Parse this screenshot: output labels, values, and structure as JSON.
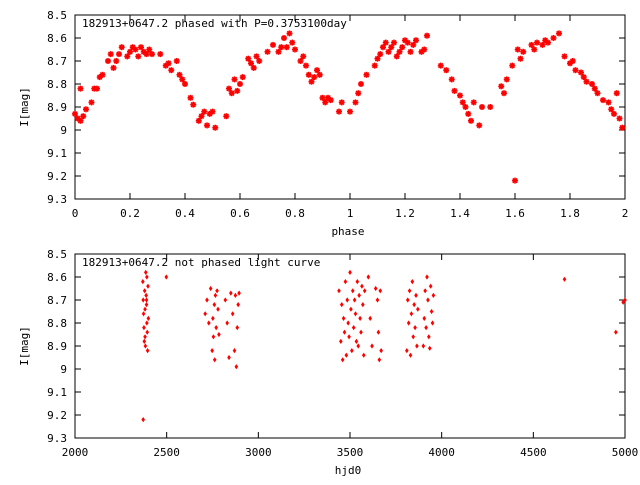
{
  "chart_data": [
    {
      "type": "scatter",
      "title": "182913+0647.2 phased with P=0.3753100day",
      "xlabel": "phase",
      "ylabel": "I[mag]",
      "xlim": [
        0,
        2
      ],
      "ylim": [
        9.3,
        8.5
      ],
      "y_inverted": true,
      "xticks": [
        "0",
        "0.2",
        "0.4",
        "0.6",
        "0.8",
        "1",
        "1.2",
        "1.4",
        "1.6",
        "1.8",
        "2"
      ],
      "yticks": [
        "8.5",
        "8.6",
        "8.7",
        "8.8",
        "8.9",
        "9",
        "9.1",
        "9.2",
        "9.3"
      ],
      "marker_color": "#ff0000",
      "points": [
        [
          0.0,
          8.93
        ],
        [
          0.01,
          8.95
        ],
        [
          0.02,
          8.96
        ],
        [
          0.02,
          8.82
        ],
        [
          0.03,
          8.94
        ],
        [
          0.04,
          8.91
        ],
        [
          0.06,
          8.88
        ],
        [
          0.07,
          8.82
        ],
        [
          0.08,
          8.82
        ],
        [
          0.09,
          8.77
        ],
        [
          0.1,
          8.76
        ],
        [
          0.12,
          8.7
        ],
        [
          0.13,
          8.67
        ],
        [
          0.14,
          8.73
        ],
        [
          0.15,
          8.7
        ],
        [
          0.16,
          8.67
        ],
        [
          0.17,
          8.64
        ],
        [
          0.19,
          8.68
        ],
        [
          0.2,
          8.66
        ],
        [
          0.21,
          8.64
        ],
        [
          0.22,
          8.65
        ],
        [
          0.23,
          8.68
        ],
        [
          0.24,
          8.64
        ],
        [
          0.25,
          8.66
        ],
        [
          0.26,
          8.67
        ],
        [
          0.27,
          8.65
        ],
        [
          0.28,
          8.67
        ],
        [
          0.31,
          8.67
        ],
        [
          0.33,
          8.72
        ],
        [
          0.34,
          8.71
        ],
        [
          0.35,
          8.74
        ],
        [
          0.37,
          8.7
        ],
        [
          0.38,
          8.76
        ],
        [
          0.39,
          8.78
        ],
        [
          0.4,
          8.8
        ],
        [
          0.42,
          8.86
        ],
        [
          0.43,
          8.89
        ],
        [
          0.45,
          8.96
        ],
        [
          0.46,
          8.94
        ],
        [
          0.47,
          8.92
        ],
        [
          0.48,
          8.98
        ],
        [
          0.49,
          8.93
        ],
        [
          0.5,
          8.92
        ],
        [
          0.51,
          8.99
        ],
        [
          0.55,
          8.94
        ],
        [
          0.56,
          8.82
        ],
        [
          0.57,
          8.84
        ],
        [
          0.58,
          8.78
        ],
        [
          0.59,
          8.83
        ],
        [
          0.6,
          8.8
        ],
        [
          0.61,
          8.77
        ],
        [
          0.63,
          8.69
        ],
        [
          0.64,
          8.71
        ],
        [
          0.65,
          8.73
        ],
        [
          0.66,
          8.68
        ],
        [
          0.67,
          8.7
        ],
        [
          0.7,
          8.66
        ],
        [
          0.72,
          8.63
        ],
        [
          0.74,
          8.66
        ],
        [
          0.75,
          8.64
        ],
        [
          0.76,
          8.6
        ],
        [
          0.77,
          8.64
        ],
        [
          0.78,
          8.58
        ],
        [
          0.79,
          8.62
        ],
        [
          0.8,
          8.65
        ],
        [
          0.82,
          8.7
        ],
        [
          0.83,
          8.68
        ],
        [
          0.84,
          8.72
        ],
        [
          0.85,
          8.76
        ],
        [
          0.86,
          8.79
        ],
        [
          0.87,
          8.77
        ],
        [
          0.88,
          8.74
        ],
        [
          0.89,
          8.76
        ],
        [
          0.9,
          8.86
        ],
        [
          0.91,
          8.88
        ],
        [
          0.92,
          8.86
        ],
        [
          0.93,
          8.87
        ],
        [
          0.96,
          8.92
        ],
        [
          0.97,
          8.88
        ],
        [
          1.0,
          8.92
        ],
        [
          1.02,
          8.88
        ],
        [
          1.03,
          8.84
        ],
        [
          1.04,
          8.8
        ],
        [
          1.06,
          8.76
        ],
        [
          1.09,
          8.72
        ],
        [
          1.1,
          8.69
        ],
        [
          1.11,
          8.67
        ],
        [
          1.12,
          8.64
        ],
        [
          1.13,
          8.62
        ],
        [
          1.14,
          8.66
        ],
        [
          1.15,
          8.64
        ],
        [
          1.16,
          8.62
        ],
        [
          1.17,
          8.68
        ],
        [
          1.18,
          8.66
        ],
        [
          1.19,
          8.64
        ],
        [
          1.2,
          8.61
        ],
        [
          1.21,
          8.62
        ],
        [
          1.22,
          8.66
        ],
        [
          1.23,
          8.63
        ],
        [
          1.24,
          8.61
        ],
        [
          1.26,
          8.66
        ],
        [
          1.27,
          8.65
        ],
        [
          1.28,
          8.59
        ],
        [
          1.33,
          8.72
        ],
        [
          1.35,
          8.74
        ],
        [
          1.37,
          8.78
        ],
        [
          1.38,
          8.83
        ],
        [
          1.4,
          8.85
        ],
        [
          1.41,
          8.88
        ],
        [
          1.42,
          8.9
        ],
        [
          1.43,
          8.93
        ],
        [
          1.44,
          8.96
        ],
        [
          1.45,
          8.88
        ],
        [
          1.47,
          8.98
        ],
        [
          1.48,
          8.9
        ],
        [
          1.51,
          8.9
        ],
        [
          1.55,
          8.81
        ],
        [
          1.56,
          8.84
        ],
        [
          1.57,
          8.78
        ],
        [
          1.59,
          8.72
        ],
        [
          1.6,
          9.22
        ],
        [
          1.61,
          8.65
        ],
        [
          1.62,
          8.69
        ],
        [
          1.63,
          8.66
        ],
        [
          1.66,
          8.63
        ],
        [
          1.67,
          8.65
        ],
        [
          1.68,
          8.62
        ],
        [
          1.7,
          8.63
        ],
        [
          1.71,
          8.61
        ],
        [
          1.72,
          8.62
        ],
        [
          1.74,
          8.6
        ],
        [
          1.76,
          8.58
        ],
        [
          1.78,
          8.68
        ],
        [
          1.8,
          8.71
        ],
        [
          1.81,
          8.7
        ],
        [
          1.82,
          8.74
        ],
        [
          1.84,
          8.75
        ],
        [
          1.85,
          8.77
        ],
        [
          1.86,
          8.79
        ],
        [
          1.88,
          8.8
        ],
        [
          1.89,
          8.82
        ],
        [
          1.9,
          8.84
        ],
        [
          1.92,
          8.87
        ],
        [
          1.94,
          8.88
        ],
        [
          1.95,
          8.91
        ],
        [
          1.96,
          8.93
        ],
        [
          1.98,
          8.95
        ],
        [
          1.99,
          8.99
        ],
        [
          1.97,
          8.84
        ]
      ]
    },
    {
      "type": "scatter",
      "title": "182913+0647.2 not phased light curve",
      "xlabel": "hjd0",
      "ylabel": "I[mag]",
      "xlim": [
        2000,
        5000
      ],
      "ylim": [
        9.3,
        8.5
      ],
      "y_inverted": true,
      "xticks": [
        "2000",
        "2500",
        "3000",
        "3500",
        "4000",
        "4500",
        "5000"
      ],
      "yticks": [
        "8.5",
        "8.6",
        "8.7",
        "8.8",
        "8.9",
        "9",
        "9.1",
        "9.2",
        "9.3"
      ],
      "marker_color": "#ff0000",
      "points": [
        [
          2370,
          8.62
        ],
        [
          2372,
          8.7
        ],
        [
          2374,
          8.76
        ],
        [
          2376,
          8.82
        ],
        [
          2378,
          8.88
        ],
        [
          2380,
          8.66
        ],
        [
          2382,
          8.74
        ],
        [
          2384,
          8.9
        ],
        [
          2386,
          8.58
        ],
        [
          2388,
          8.68
        ],
        [
          2390,
          8.72
        ],
        [
          2392,
          8.8
        ],
        [
          2394,
          8.84
        ],
        [
          2396,
          8.92
        ],
        [
          2398,
          8.64
        ],
        [
          2400,
          8.78
        ],
        [
          2372,
          9.22
        ],
        [
          2382,
          8.86
        ],
        [
          2392,
          8.6
        ],
        [
          2390,
          8.7
        ],
        [
          2498,
          8.6
        ],
        [
          2710,
          8.76
        ],
        [
          2720,
          8.7
        ],
        [
          2730,
          8.8
        ],
        [
          2740,
          8.65
        ],
        [
          2748,
          8.92
        ],
        [
          2752,
          8.78
        ],
        [
          2755,
          8.86
        ],
        [
          2760,
          8.72
        ],
        [
          2762,
          8.96
        ],
        [
          2766,
          8.68
        ],
        [
          2770,
          8.82
        ],
        [
          2775,
          8.66
        ],
        [
          2780,
          8.74
        ],
        [
          2785,
          8.85
        ],
        [
          2820,
          8.7
        ],
        [
          2830,
          8.8
        ],
        [
          2840,
          8.95
        ],
        [
          2850,
          8.67
        ],
        [
          2860,
          8.76
        ],
        [
          2870,
          8.92
        ],
        [
          2875,
          8.68
        ],
        [
          2880,
          8.99
        ],
        [
          2885,
          8.82
        ],
        [
          2890,
          8.72
        ],
        [
          2895,
          8.67
        ],
        [
          3440,
          8.66
        ],
        [
          3450,
          8.88
        ],
        [
          3455,
          8.72
        ],
        [
          3460,
          8.96
        ],
        [
          3465,
          8.78
        ],
        [
          3470,
          8.84
        ],
        [
          3475,
          8.62
        ],
        [
          3480,
          8.94
        ],
        [
          3485,
          8.7
        ],
        [
          3490,
          8.8
        ],
        [
          3495,
          8.86
        ],
        [
          3500,
          8.58
        ],
        [
          3505,
          8.74
        ],
        [
          3510,
          8.92
        ],
        [
          3515,
          8.66
        ],
        [
          3520,
          8.82
        ],
        [
          3525,
          8.7
        ],
        [
          3530,
          8.76
        ],
        [
          3535,
          8.88
        ],
        [
          3540,
          8.62
        ],
        [
          3545,
          8.9
        ],
        [
          3550,
          8.68
        ],
        [
          3555,
          8.78
        ],
        [
          3560,
          8.84
        ],
        [
          3565,
          8.64
        ],
        [
          3570,
          8.72
        ],
        [
          3575,
          8.94
        ],
        [
          3580,
          8.66
        ],
        [
          3600,
          8.6
        ],
        [
          3610,
          8.78
        ],
        [
          3620,
          8.9
        ],
        [
          3640,
          8.65
        ],
        [
          3650,
          8.7
        ],
        [
          3655,
          8.84
        ],
        [
          3660,
          8.96
        ],
        [
          3665,
          8.66
        ],
        [
          3670,
          8.92
        ],
        [
          3810,
          8.92
        ],
        [
          3815,
          8.7
        ],
        [
          3820,
          8.8
        ],
        [
          3825,
          8.66
        ],
        [
          3830,
          8.94
        ],
        [
          3835,
          8.76
        ],
        [
          3840,
          8.62
        ],
        [
          3845,
          8.86
        ],
        [
          3850,
          8.72
        ],
        [
          3855,
          8.82
        ],
        [
          3860,
          8.68
        ],
        [
          3865,
          8.9
        ],
        [
          3870,
          8.74
        ],
        [
          3900,
          8.9
        ],
        [
          3905,
          8.78
        ],
        [
          3910,
          8.66
        ],
        [
          3915,
          8.82
        ],
        [
          3920,
          8.6
        ],
        [
          3925,
          8.7
        ],
        [
          3930,
          8.86
        ],
        [
          3935,
          8.91
        ],
        [
          3940,
          8.64
        ],
        [
          3945,
          8.75
        ],
        [
          3950,
          8.8
        ],
        [
          3955,
          8.68
        ],
        [
          4670,
          8.61
        ],
        [
          4950,
          8.84
        ],
        [
          4990,
          8.71
        ],
        [
          5000,
          8.7
        ]
      ]
    }
  ]
}
